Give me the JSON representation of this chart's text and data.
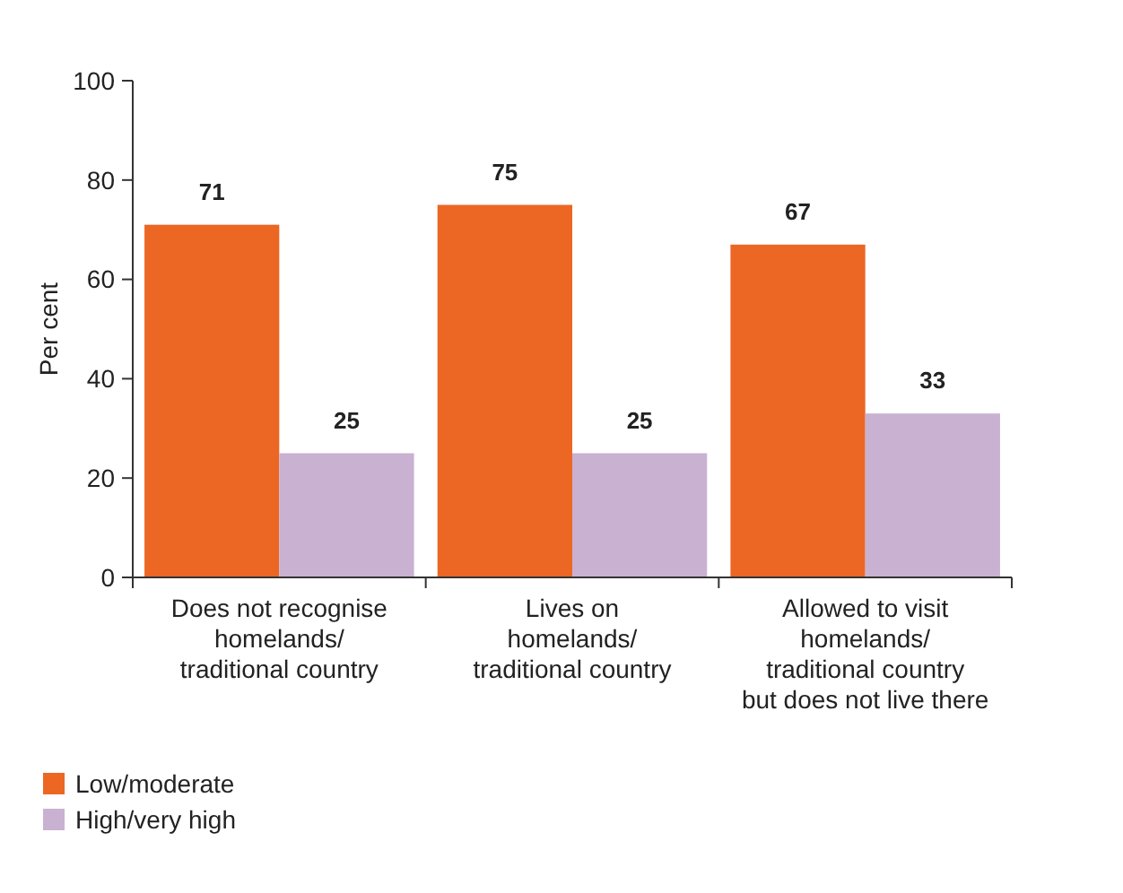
{
  "chart_data": {
    "type": "bar",
    "ylabel": "Per cent",
    "categories": [
      "Does not recognise\nhomelands/\ntraditional country",
      "Lives on\nhomelands/\ntraditional country",
      "Allowed to visit\nhomelands/\ntraditional country\nbut does not live there"
    ],
    "series": [
      {
        "name": "Low/moderate",
        "color": "#ec6624",
        "values": [
          71,
          75,
          67
        ]
      },
      {
        "name": "High/very high",
        "color": "#c9b1d2",
        "values": [
          25,
          25,
          33
        ]
      }
    ],
    "ylim": [
      0,
      100
    ],
    "yticks": [
      0,
      20,
      40,
      60,
      80,
      100
    ],
    "data_labels": true,
    "legend": "bottom left",
    "grid": false
  }
}
